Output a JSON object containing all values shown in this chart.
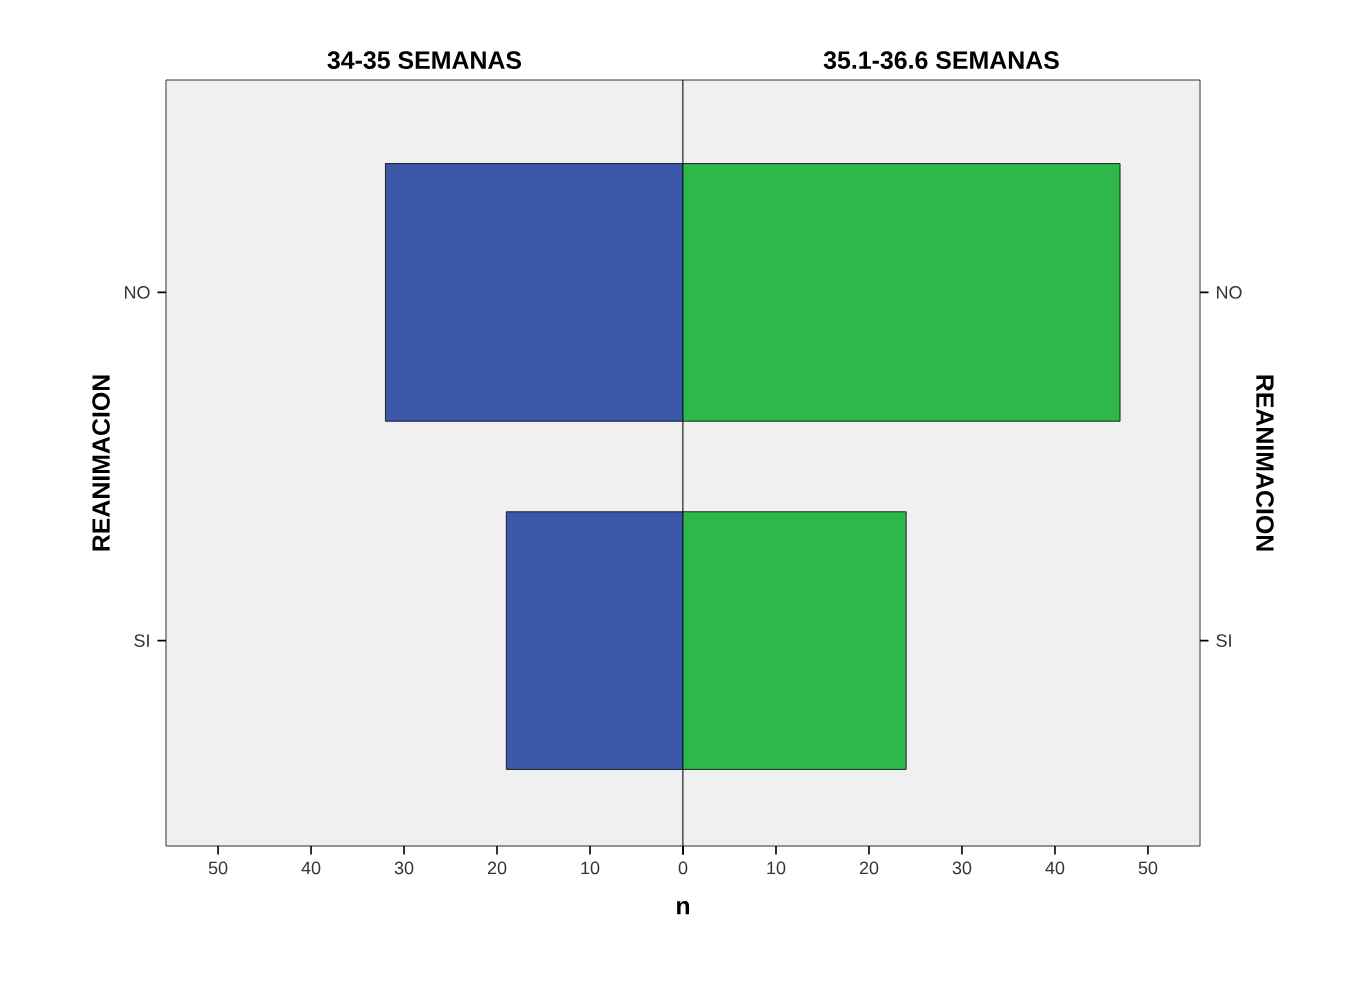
{
  "chart_data": [
    {
      "type": "bar",
      "orientation": "horizontal",
      "title": "34-35 SEMANAS",
      "xlabel": "n",
      "ylabel": "REANIMACION",
      "categories": [
        "NO",
        "SI"
      ],
      "values": [
        32,
        19
      ],
      "color": "#3d58a9",
      "xlim": [
        55.6,
        0
      ],
      "xticks": [
        0,
        10,
        20,
        30,
        40,
        50
      ]
    },
    {
      "type": "bar",
      "orientation": "horizontal",
      "title": "35.1-36.6 SEMANAS",
      "ylabel": "REANIMACION",
      "categories": [
        "NO",
        "SI"
      ],
      "values": [
        47,
        24
      ],
      "color": "#2eb84a",
      "xlim": [
        0,
        55.6
      ],
      "xticks": [
        {
          "value": 0,
          "label": null
        },
        10,
        20,
        30,
        40,
        50
      ]
    }
  ]
}
